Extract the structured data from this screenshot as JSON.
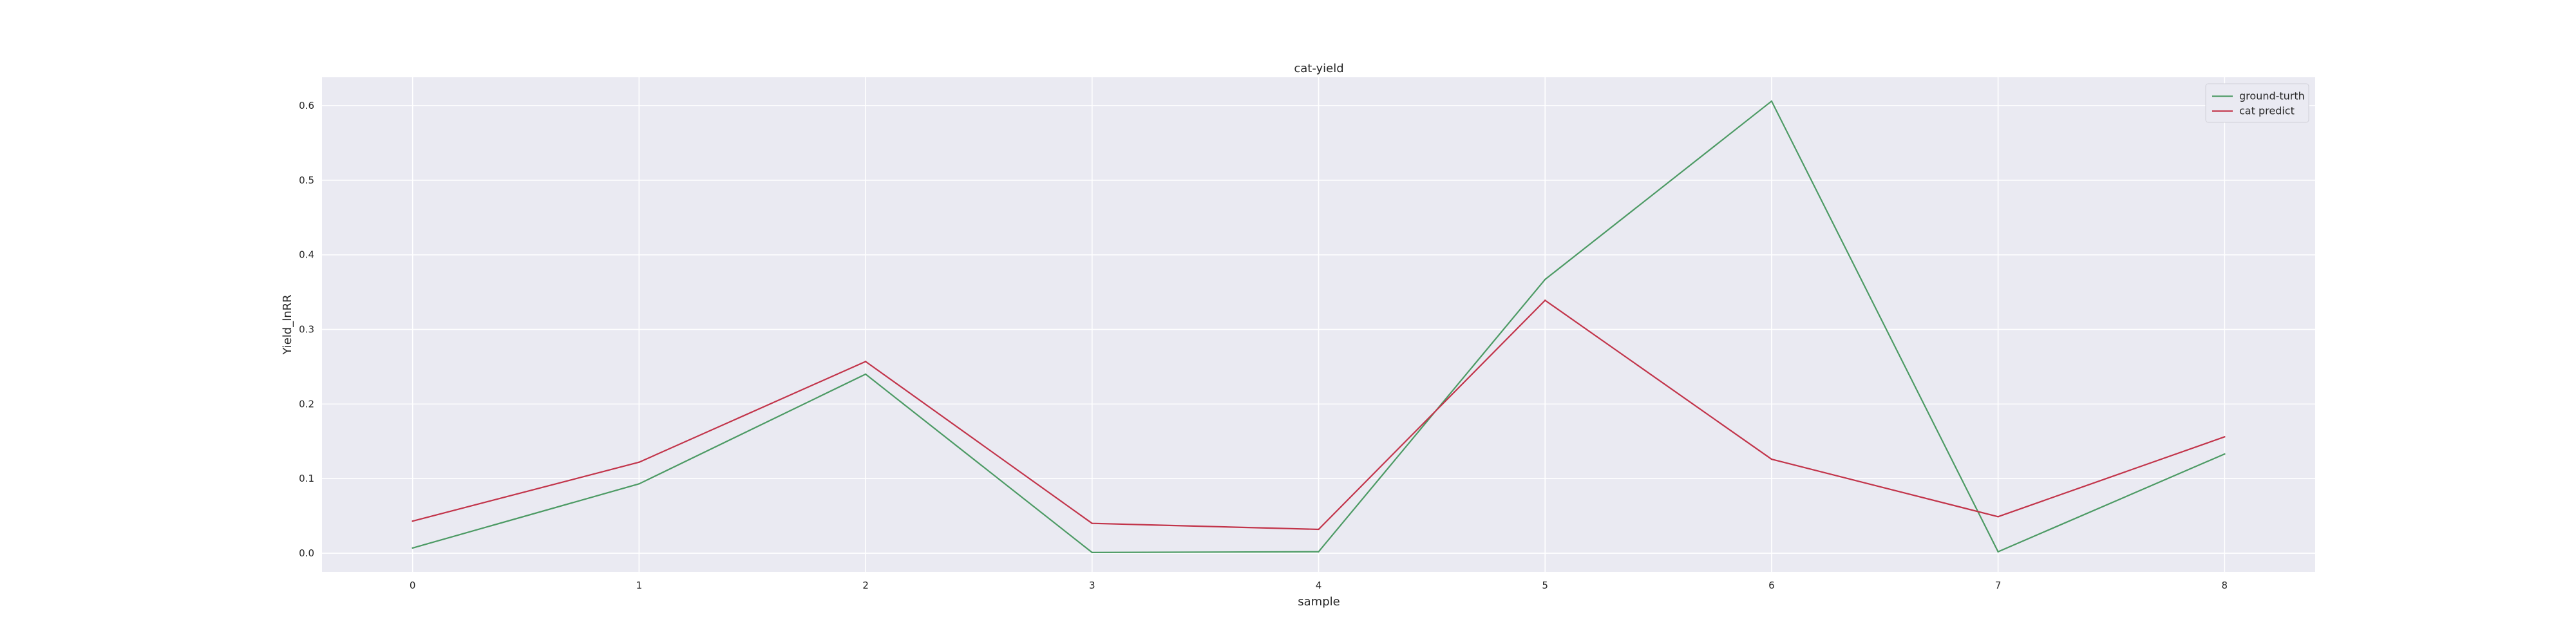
{
  "chart_data": {
    "type": "line",
    "title": "cat-yield",
    "xlabel": "sample",
    "ylabel": "Yield_lnRR",
    "x": [
      0,
      1,
      2,
      3,
      4,
      5,
      6,
      7,
      8
    ],
    "xlim": [
      -0.4,
      8.4
    ],
    "ylim": [
      -0.025,
      0.638
    ],
    "xticks": [
      "0",
      "1",
      "2",
      "3",
      "4",
      "5",
      "6",
      "7",
      "8"
    ],
    "yticks": [
      "0.0",
      "0.1",
      "0.2",
      "0.3",
      "0.4",
      "0.5",
      "0.6"
    ],
    "grid": true,
    "legend_position": "top-right",
    "background_color": "#eaeaf2",
    "series": [
      {
        "name": "ground-turth",
        "color": "#4c9a64",
        "values": [
          0.007,
          0.093,
          0.24,
          0.001,
          0.002,
          0.367,
          0.606,
          0.002,
          0.133
        ]
      },
      {
        "name": "cat predict",
        "color": "#c2344a",
        "values": [
          0.043,
          0.122,
          0.257,
          0.04,
          0.032,
          0.339,
          0.126,
          0.049,
          0.156
        ]
      }
    ]
  }
}
